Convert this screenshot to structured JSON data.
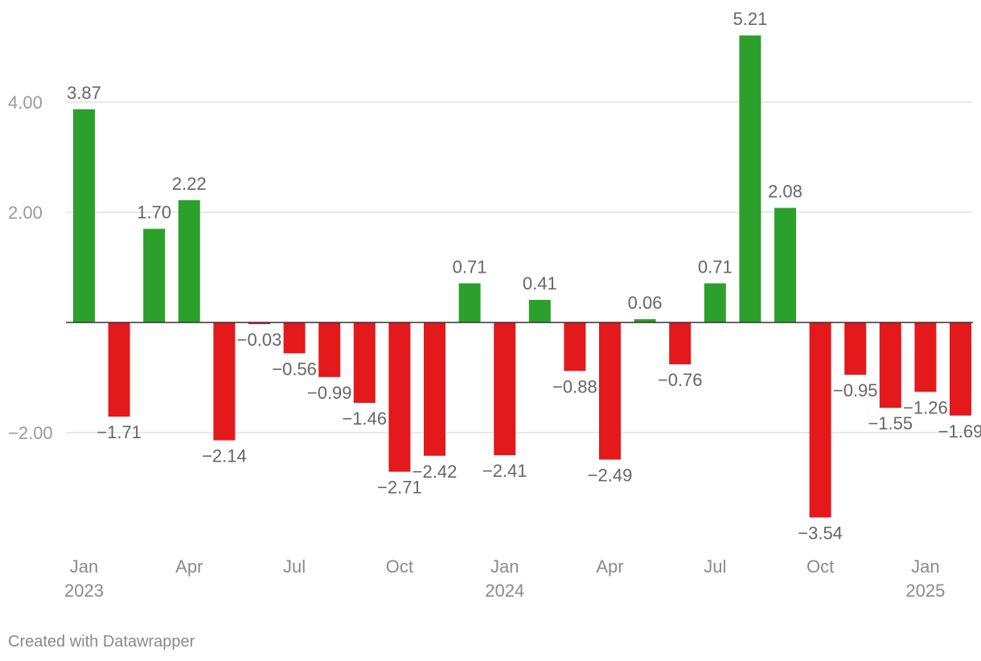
{
  "chart_data": {
    "type": "bar",
    "categories": [
      "2023-01",
      "2023-02",
      "2023-03",
      "2023-04",
      "2023-05",
      "2023-06",
      "2023-07",
      "2023-08",
      "2023-09",
      "2023-10",
      "2023-11",
      "2023-12",
      "2024-01",
      "2024-02",
      "2024-03",
      "2024-04",
      "2024-05",
      "2024-06",
      "2024-07",
      "2024-08",
      "2024-09",
      "2024-10",
      "2024-11",
      "2024-12",
      "2025-01",
      "2025-02"
    ],
    "values": [
      3.87,
      -1.71,
      1.7,
      2.22,
      -2.14,
      -0.03,
      -0.56,
      -0.99,
      -1.46,
      -2.71,
      -2.42,
      0.71,
      -2.41,
      0.41,
      -0.88,
      -2.49,
      0.06,
      -0.76,
      0.71,
      5.21,
      2.08,
      -3.54,
      -0.95,
      -1.55,
      -1.26,
      -1.69
    ],
    "labels": [
      "3.87",
      "−1.71",
      "1.70",
      "2.22",
      "−2.14",
      "−0.03",
      "−0.56",
      "−0.99",
      "−1.46",
      "−2.71",
      "−2.42",
      "0.71",
      "−2.41",
      "0.41",
      "−0.88",
      "−2.49",
      "0.06",
      "−0.76",
      "0.71",
      "5.21",
      "2.08",
      "−3.54",
      "−0.95",
      "−1.55",
      "−1.26",
      "−1.69"
    ],
    "y_ticks": [
      {
        "value": 4,
        "label": "4.00"
      },
      {
        "value": 2,
        "label": "2.00"
      },
      {
        "value": -2,
        "label": "−2.00"
      }
    ],
    "x_ticks": [
      {
        "index": 0,
        "line1": "Jan",
        "line2": "2023"
      },
      {
        "index": 3,
        "line1": "Apr",
        "line2": ""
      },
      {
        "index": 6,
        "line1": "Jul",
        "line2": ""
      },
      {
        "index": 9,
        "line1": "Oct",
        "line2": ""
      },
      {
        "index": 12,
        "line1": "Jan",
        "line2": "2024"
      },
      {
        "index": 15,
        "line1": "Apr",
        "line2": ""
      },
      {
        "index": 18,
        "line1": "Jul",
        "line2": ""
      },
      {
        "index": 21,
        "line1": "Oct",
        "line2": ""
      },
      {
        "index": 24,
        "line1": "Jan",
        "line2": "2025"
      }
    ],
    "ylim": [
      -4,
      5.5
    ],
    "grid": true,
    "colors": {
      "positive": "#2ca02c",
      "negative": "#e3191c"
    },
    "title": "",
    "xlabel": "",
    "ylabel": ""
  },
  "footer": {
    "credit": "Created with Datawrapper"
  }
}
